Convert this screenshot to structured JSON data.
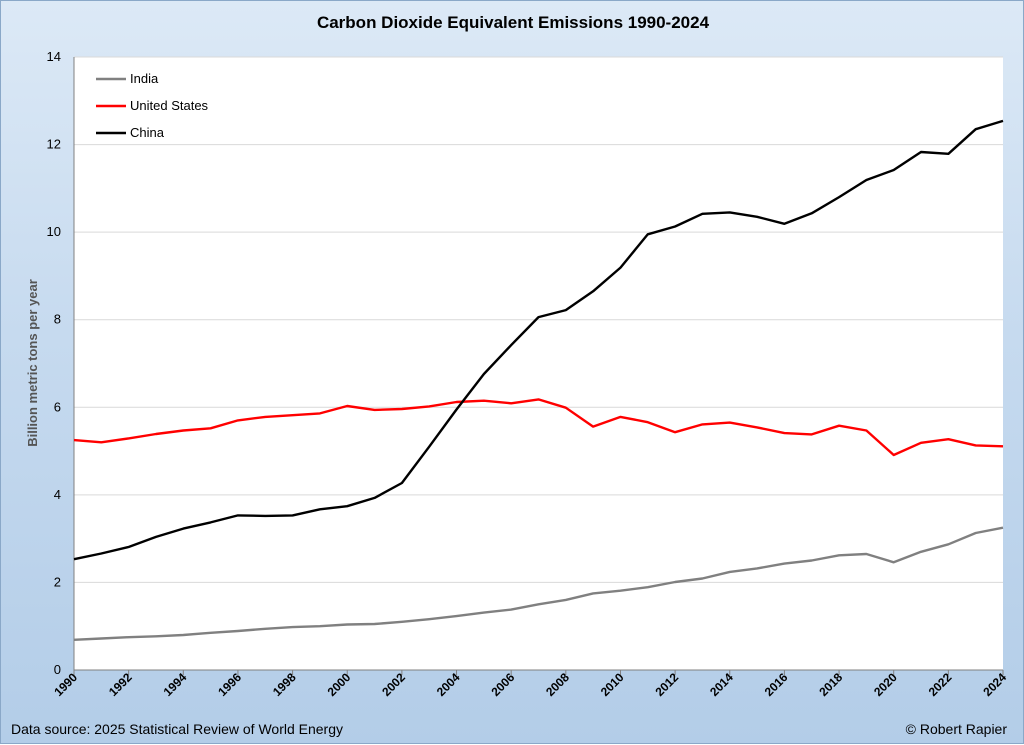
{
  "chart_data": {
    "type": "line",
    "title": "Carbon Dioxide Equivalent Emissions 1990-2024",
    "xlabel": "",
    "ylabel": "Billion metric tons per year",
    "ylim": [
      0,
      14
    ],
    "yticks": [
      0,
      2,
      4,
      6,
      8,
      10,
      12,
      14
    ],
    "xticks": [
      1990,
      1992,
      1994,
      1996,
      1998,
      2000,
      2002,
      2004,
      2006,
      2008,
      2010,
      2012,
      2014,
      2016,
      2018,
      2020,
      2022,
      2024
    ],
    "grid": true,
    "legend_position": "top-left",
    "x": [
      1990,
      1991,
      1992,
      1993,
      1994,
      1995,
      1996,
      1997,
      1998,
      1999,
      2000,
      2001,
      2002,
      2003,
      2004,
      2005,
      2006,
      2007,
      2008,
      2009,
      2010,
      2011,
      2012,
      2013,
      2014,
      2015,
      2016,
      2017,
      2018,
      2019,
      2020,
      2021,
      2022,
      2023,
      2024
    ],
    "series": [
      {
        "name": "India",
        "color": "#808080",
        "values": [
          0.69,
          0.72,
          0.75,
          0.77,
          0.8,
          0.85,
          0.89,
          0.94,
          0.98,
          1.0,
          1.04,
          1.05,
          1.1,
          1.16,
          1.23,
          1.31,
          1.38,
          1.5,
          1.6,
          1.75,
          1.81,
          1.89,
          2.01,
          2.09,
          2.24,
          2.32,
          2.43,
          2.5,
          2.62,
          2.65,
          2.46,
          2.7,
          2.87,
          3.13,
          3.25
        ]
      },
      {
        "name": "United States",
        "color": "#ff0000",
        "values": [
          5.25,
          5.2,
          5.29,
          5.39,
          5.47,
          5.52,
          5.7,
          5.78,
          5.82,
          5.86,
          6.03,
          5.94,
          5.96,
          6.02,
          6.12,
          6.15,
          6.09,
          6.18,
          5.99,
          5.56,
          5.78,
          5.66,
          5.43,
          5.61,
          5.65,
          5.54,
          5.41,
          5.38,
          5.58,
          5.47,
          4.91,
          5.19,
          5.27,
          5.13,
          5.11
        ]
      },
      {
        "name": "China",
        "color": "#000000",
        "values": [
          2.53,
          2.66,
          2.81,
          3.04,
          3.23,
          3.37,
          3.53,
          3.52,
          3.53,
          3.67,
          3.74,
          3.93,
          4.27,
          5.1,
          5.95,
          6.76,
          7.42,
          8.06,
          8.22,
          8.65,
          9.19,
          9.95,
          10.13,
          10.42,
          10.45,
          10.35,
          10.19,
          10.43,
          10.8,
          11.19,
          11.42,
          11.83,
          11.79,
          12.35,
          12.54
        ]
      }
    ]
  },
  "footer": {
    "source": "Data source: 2025 Statistical Review of World Energy",
    "credit": "© Robert Rapier"
  }
}
